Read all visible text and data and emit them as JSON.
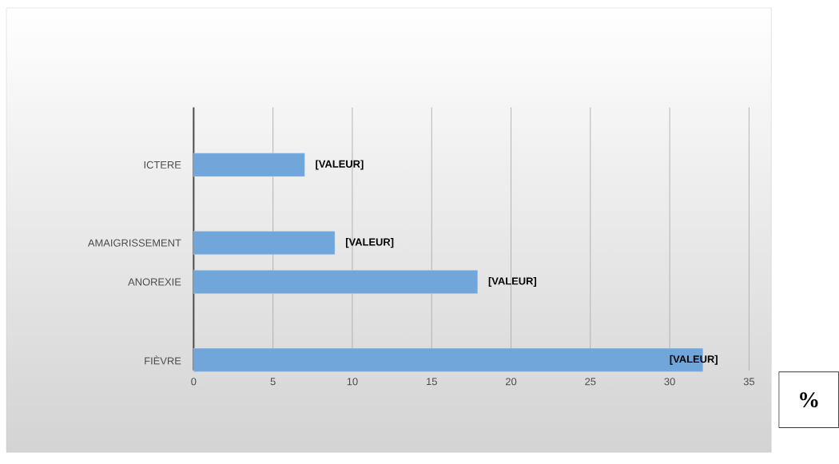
{
  "chart_data": {
    "type": "bar",
    "orientation": "horizontal",
    "categories": [
      "ICTERE",
      null,
      "AMAIGRISSEMENT",
      "ANOREXIE",
      null,
      "FIÈVRE"
    ],
    "values": [
      7,
      null,
      8.9,
      17.9,
      null,
      32.1
    ],
    "value_labels": [
      "[VALEUR]",
      null,
      "[VALEUR]",
      "[VALEUR]",
      null,
      "[VALEUR]"
    ],
    "color": "#70a6d9",
    "xlim": [
      0,
      35
    ],
    "xticks": [
      0,
      5,
      10,
      15,
      20,
      25,
      30,
      35
    ],
    "grid": "x",
    "xlabel": "%"
  }
}
